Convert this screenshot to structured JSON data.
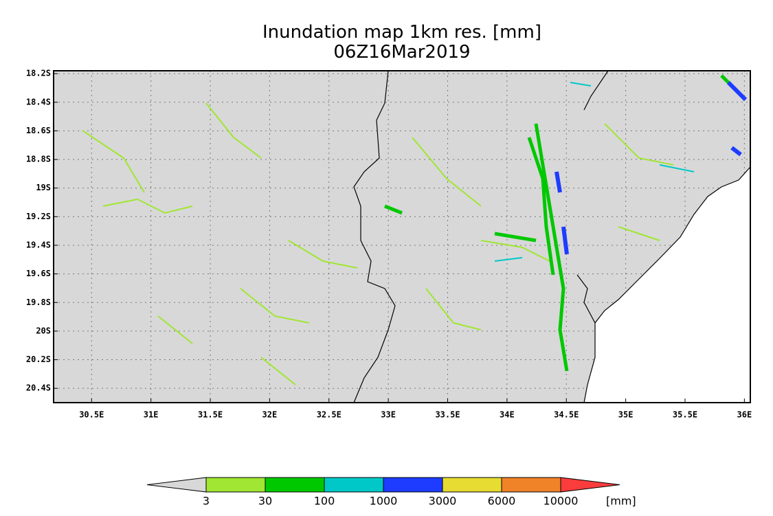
{
  "map": {
    "title": "Inundation map 1km res. [mm]",
    "subtitle": "06Z16Mar2019",
    "xlim": [
      30.18,
      36.05
    ],
    "ylim": [
      -20.5,
      -18.18
    ],
    "xticks": [
      {
        "value": 30.5,
        "label": "30.5E"
      },
      {
        "value": 31,
        "label": "31E"
      },
      {
        "value": 31.5,
        "label": "31.5E"
      },
      {
        "value": 32,
        "label": "32E"
      },
      {
        "value": 32.5,
        "label": "32.5E"
      },
      {
        "value": 33,
        "label": "33E"
      },
      {
        "value": 33.5,
        "label": "33.5E"
      },
      {
        "value": 34,
        "label": "34E"
      },
      {
        "value": 34.5,
        "label": "34.5E"
      },
      {
        "value": 35,
        "label": "35E"
      },
      {
        "value": 35.5,
        "label": "35.5E"
      },
      {
        "value": 36,
        "label": "36E"
      }
    ],
    "yticks": [
      {
        "value": -18.2,
        "label": "18.2S"
      },
      {
        "value": -18.4,
        "label": "18.4S"
      },
      {
        "value": -18.6,
        "label": "18.6S"
      },
      {
        "value": -18.8,
        "label": "18.8S"
      },
      {
        "value": -19,
        "label": "19S"
      },
      {
        "value": -19.2,
        "label": "19.2S"
      },
      {
        "value": -19.4,
        "label": "19.4S"
      },
      {
        "value": -19.6,
        "label": "19.6S"
      },
      {
        "value": -19.8,
        "label": "19.8S"
      },
      {
        "value": -20,
        "label": "20S"
      },
      {
        "value": -20.2,
        "label": "20.2S"
      },
      {
        "value": -20.4,
        "label": "20.4S"
      }
    ],
    "grid": true,
    "colorbar": {
      "levels": [
        3,
        30,
        100,
        1000,
        3000,
        6000,
        10000
      ],
      "colors": [
        "#d8d8d8",
        "#a0e632",
        "#00c800",
        "#00c8c8",
        "#1e3cff",
        "#e6dc32",
        "#f08228",
        "#fa3c3c"
      ],
      "unit": "[mm]"
    }
  }
}
